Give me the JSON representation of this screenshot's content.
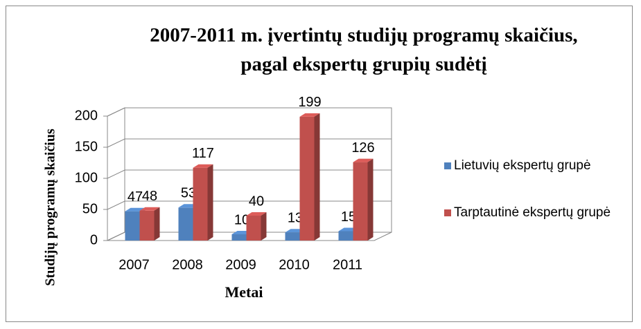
{
  "chart_data": {
    "type": "bar3d",
    "title": "2007-2011 m. įvertintų studijų programų skaičius, pagal ekspertų grupių sudėtį",
    "x_label": "Metai",
    "y_label": "Studijų programų skaičius",
    "categories": [
      "2007",
      "2008",
      "2009",
      "2010",
      "2011"
    ],
    "series": [
      {
        "name": "Lietuvių ekspertų grupė",
        "color": "#4f81bd",
        "values": [
          47,
          53,
          10,
          13,
          15
        ]
      },
      {
        "name": "Tarptautinė ekspertų grupė",
        "color": "#c0504d",
        "values": [
          48,
          117,
          40,
          199,
          126
        ]
      }
    ],
    "ylim": [
      0,
      200
    ],
    "yticks": [
      0,
      50,
      100,
      150,
      200
    ],
    "grid": true,
    "legend": "right"
  }
}
